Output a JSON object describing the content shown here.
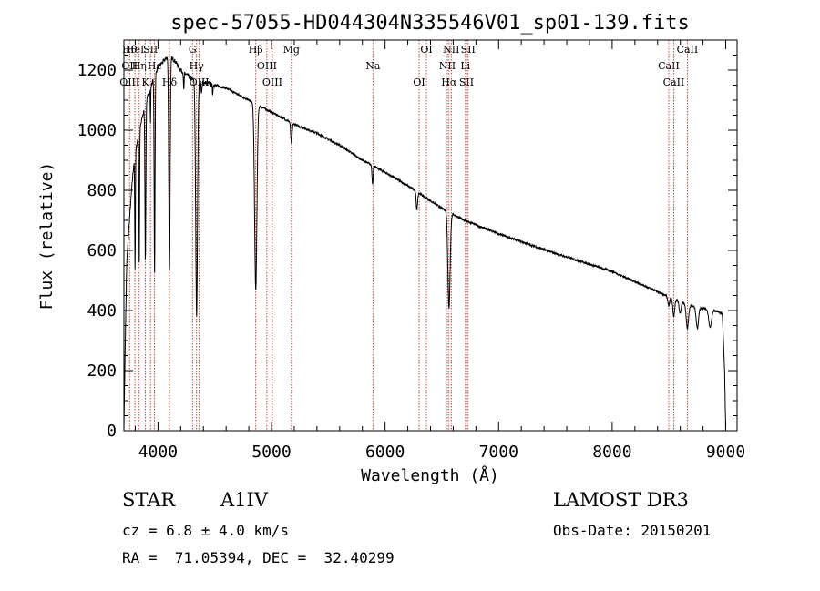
{
  "chart_data": {
    "type": "line",
    "title": "spec-57055-HD044304N335546V01_sp01-139.fits",
    "xlabel": "Wavelength (Å)",
    "ylabel": "Flux (relative)",
    "xlim": [
      3700,
      9100
    ],
    "ylim": [
      0,
      1300
    ],
    "xticks": [
      4000,
      5000,
      6000,
      7000,
      8000,
      9000
    ],
    "yticks": [
      0,
      200,
      400,
      600,
      800,
      1000,
      1200
    ],
    "x_minor_step": 200,
    "y_minor_step": 50,
    "grid": false,
    "series": [
      {
        "name": "flux",
        "continuum": [
          [
            3700,
            0
          ],
          [
            3710,
            250
          ],
          [
            3725,
            560
          ],
          [
            3740,
            650
          ],
          [
            3760,
            760
          ],
          [
            3780,
            860
          ],
          [
            3800,
            930
          ],
          [
            3830,
            980
          ],
          [
            3860,
            1040
          ],
          [
            3900,
            1100
          ],
          [
            3950,
            1160
          ],
          [
            4000,
            1210
          ],
          [
            4050,
            1230
          ],
          [
            4100,
            1250
          ],
          [
            4150,
            1230
          ],
          [
            4200,
            1200
          ],
          [
            4300,
            1170
          ],
          [
            4400,
            1160
          ],
          [
            4500,
            1150
          ],
          [
            4600,
            1140
          ],
          [
            4700,
            1120
          ],
          [
            4800,
            1100
          ],
          [
            4900,
            1080
          ],
          [
            5000,
            1060
          ],
          [
            5100,
            1040
          ],
          [
            5200,
            1020
          ],
          [
            5400,
            990
          ],
          [
            5600,
            950
          ],
          [
            5800,
            900
          ],
          [
            6000,
            860
          ],
          [
            6200,
            815
          ],
          [
            6400,
            765
          ],
          [
            6500,
            740
          ],
          [
            6600,
            720
          ],
          [
            6700,
            700
          ],
          [
            7000,
            655
          ],
          [
            7500,
            590
          ],
          [
            8000,
            530
          ],
          [
            8500,
            445
          ],
          [
            8700,
            415
          ],
          [
            8900,
            400
          ],
          [
            8970,
            390
          ],
          [
            8990,
            200
          ],
          [
            9000,
            0
          ]
        ],
        "absorption_lines": [
          [
            3798,
            380,
            3
          ],
          [
            3835,
            450,
            3
          ],
          [
            3889,
            520,
            4
          ],
          [
            3934,
            120,
            2
          ],
          [
            3970,
            650,
            4
          ],
          [
            4101,
            720,
            6
          ],
          [
            4227,
            60,
            3
          ],
          [
            4340,
            780,
            8
          ],
          [
            4384,
            40,
            4
          ],
          [
            4481,
            30,
            3
          ],
          [
            4861,
            620,
            10
          ],
          [
            5175,
            70,
            6
          ],
          [
            5890,
            60,
            5
          ],
          [
            6280,
            60,
            6
          ],
          [
            6563,
            320,
            10
          ],
          [
            8498,
            30,
            8
          ],
          [
            8542,
            60,
            8
          ],
          [
            8598,
            40,
            8
          ],
          [
            8662,
            80,
            10
          ],
          [
            8750,
            70,
            10
          ],
          [
            8863,
            60,
            12
          ]
        ]
      }
    ],
    "line_markers": [
      {
        "wavelength": 3750,
        "lines": [
          "Hθ",
          "OII",
          "OIII"
        ]
      },
      {
        "wavelength": 3797,
        "lines": [
          "HeI"
        ]
      },
      {
        "wavelength": 3835,
        "lines": [
          "Hη"
        ]
      },
      {
        "wavelength": 3889,
        "lines": [
          "K"
        ]
      },
      {
        "wavelength": 3934,
        "lines": [
          "SII"
        ]
      },
      {
        "wavelength": 3968,
        "lines": [
          "Hε"
        ]
      },
      {
        "wavelength": 4101,
        "lines": [
          "Hδ"
        ]
      },
      {
        "wavelength": 4304,
        "lines": [
          "G"
        ]
      },
      {
        "wavelength": 4340,
        "lines": [
          "Hγ"
        ]
      },
      {
        "wavelength": 4363,
        "lines": [
          "OIII"
        ]
      },
      {
        "wavelength": 4861,
        "lines": [
          "Hβ"
        ]
      },
      {
        "wavelength": 4959,
        "lines": [
          "OIII"
        ]
      },
      {
        "wavelength": 5007,
        "lines": [
          "OIII"
        ]
      },
      {
        "wavelength": 5175,
        "lines": [
          "Mg"
        ]
      },
      {
        "wavelength": 5893,
        "lines": [
          "Na"
        ]
      },
      {
        "wavelength": 6300,
        "lines": [
          "OI"
        ]
      },
      {
        "wavelength": 6364,
        "lines": [
          "OI"
        ]
      },
      {
        "wavelength": 6548,
        "lines": [
          "NII"
        ]
      },
      {
        "wavelength": 6563,
        "lines": [
          "Hα"
        ]
      },
      {
        "wavelength": 6583,
        "lines": [
          "NII"
        ]
      },
      {
        "wavelength": 6707,
        "lines": [
          "Li"
        ]
      },
      {
        "wavelength": 6717,
        "lines": [
          "SII"
        ]
      },
      {
        "wavelength": 6731,
        "lines": [
          "SII"
        ]
      },
      {
        "wavelength": 8498,
        "lines": [
          "CaII"
        ]
      },
      {
        "wavelength": 8542,
        "lines": [
          "CaII"
        ]
      },
      {
        "wavelength": 8662,
        "lines": [
          "CaII"
        ]
      }
    ]
  },
  "info": {
    "object_class": "STAR",
    "subclass": "A1IV",
    "survey": "LAMOST DR3",
    "redshift": "cz = 6.8 ± 4.0 km/s",
    "obs_date": "Obs-Date: 20150201",
    "coordinates": "RA =  71.05394, DEC =  32.40299"
  },
  "colors": {
    "axis": "#000000",
    "spectrum": "#000000",
    "marker": "#b22222"
  }
}
